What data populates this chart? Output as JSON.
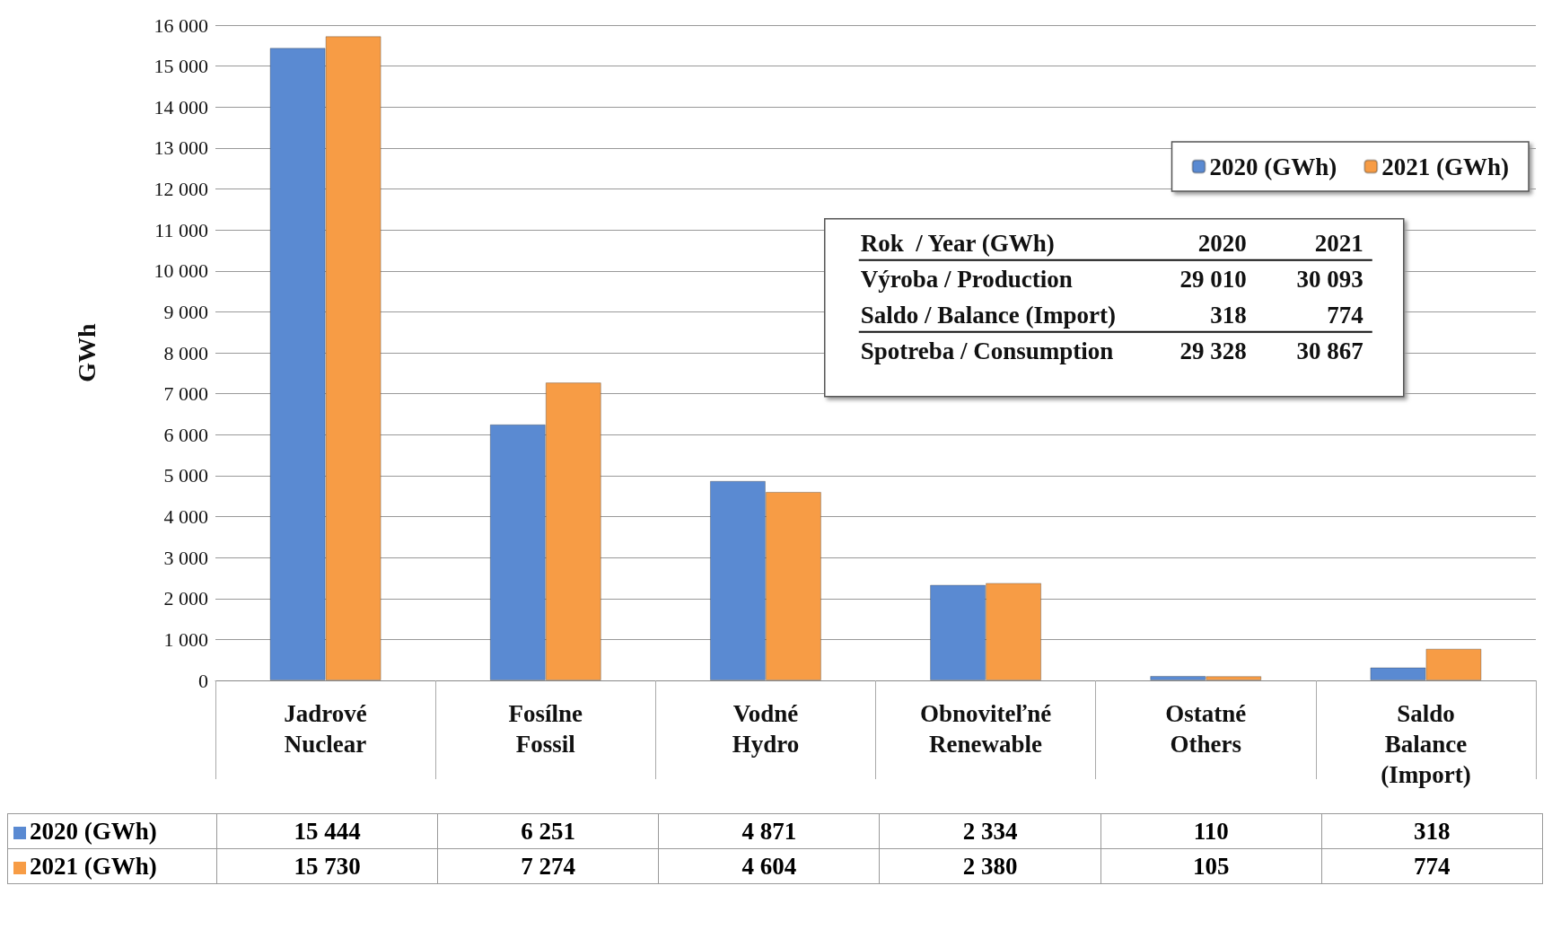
{
  "chart_data": {
    "type": "bar",
    "categories": [
      "Jadrové\nNuclear",
      "Fosílne\nFossil",
      "Vodné\nHydro",
      "Obnoviteľné\nRenewable",
      "Ostatné\nOthers",
      "Saldo\nBalance\n(Import)"
    ],
    "series": [
      {
        "name": "2020 (GWh)",
        "color": "#5a8ad2",
        "values": [
          15444,
          6251,
          4871,
          2334,
          110,
          318
        ],
        "value_labels": [
          "15 444",
          "6 251",
          "4 871",
          "2 334",
          "110",
          "318"
        ]
      },
      {
        "name": "2021 (GWh)",
        "color": "#f79c45",
        "values": [
          15730,
          7274,
          4604,
          2380,
          105,
          774
        ],
        "value_labels": [
          "15 730",
          "7 274",
          "4 604",
          "2 380",
          "105",
          "774"
        ]
      }
    ],
    "ylabel": "GWh",
    "ylim": [
      0,
      16000
    ],
    "yticks": [
      {
        "value": 0,
        "label": "0"
      },
      {
        "value": 1000,
        "label": "1 000"
      },
      {
        "value": 2000,
        "label": "2 000"
      },
      {
        "value": 3000,
        "label": "3 000"
      },
      {
        "value": 4000,
        "label": "4 000"
      },
      {
        "value": 5000,
        "label": "5 000"
      },
      {
        "value": 6000,
        "label": "6 000"
      },
      {
        "value": 7000,
        "label": "7 000"
      },
      {
        "value": 8000,
        "label": "8 000"
      },
      {
        "value": 9000,
        "label": "9 000"
      },
      {
        "value": 10000,
        "label": "10 000"
      },
      {
        "value": 11000,
        "label": "11 000"
      },
      {
        "value": 12000,
        "label": "12 000"
      },
      {
        "value": 13000,
        "label": "13 000"
      },
      {
        "value": 14000,
        "label": "14 000"
      },
      {
        "value": 15000,
        "label": "15 000"
      },
      {
        "value": 16000,
        "label": "16 000"
      }
    ],
    "grid": "y",
    "legend": "top right",
    "annotations": [
      "Rok  / Year (GWh)",
      "2020",
      "2021",
      "Výroba / Production",
      "29 010",
      "30 093",
      "Saldo / Balance (Import)",
      "318",
      "774",
      "Spotreba / Consumption",
      "29 328",
      "30 867"
    ]
  }
}
